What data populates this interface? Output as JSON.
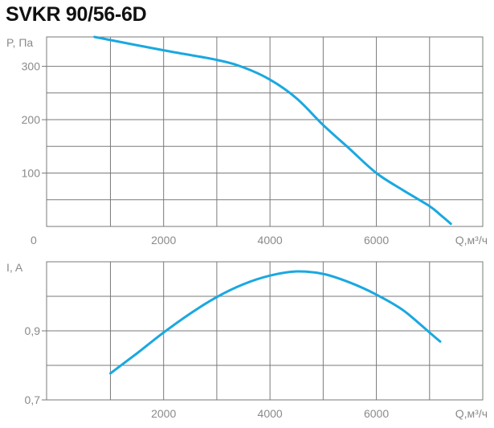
{
  "title": "SVKR 90/56-6D",
  "colors": {
    "curve": "#1aa8e0",
    "grid": "#7a7a7a",
    "text": "#8a8a8a",
    "title": "#111111"
  },
  "chart_data": [
    {
      "type": "line",
      "ylabel": "P, Па",
      "xlabel": "Q,м³/ч",
      "xlim": [
        -200,
        8000
      ],
      "ylim": [
        0,
        355
      ],
      "x_ticks": [
        2000,
        4000,
        6000
      ],
      "y_ticks": [
        100,
        200,
        300
      ],
      "origin_label": "0",
      "grid": true,
      "series": [
        {
          "x": [
            700,
            2000,
            3000,
            3500,
            4000,
            4500,
            5000,
            5500,
            6000,
            6500,
            7000,
            7200,
            7400
          ],
          "y": [
            355,
            330,
            312,
            298,
            275,
            240,
            190,
            145,
            100,
            68,
            38,
            22,
            5
          ]
        }
      ]
    },
    {
      "type": "line",
      "ylabel": "I, A",
      "xlabel": "Q,м³/ч",
      "xlim": [
        -200,
        8000
      ],
      "ylim": [
        0.7,
        1.1
      ],
      "x_ticks": [
        2000,
        4000,
        6000
      ],
      "y_ticks": [
        0.7,
        0.9
      ],
      "y_tick_labels": [
        "0,7",
        "0,9"
      ],
      "grid": true,
      "series": [
        {
          "x": [
            1000,
            1500,
            2000,
            2500,
            3000,
            3500,
            4000,
            4500,
            5000,
            5500,
            6000,
            6500,
            7000,
            7200
          ],
          "y": [
            0.777,
            0.835,
            0.895,
            0.95,
            0.998,
            1.035,
            1.06,
            1.072,
            1.065,
            1.04,
            1.005,
            0.96,
            0.895,
            0.869
          ]
        }
      ]
    }
  ]
}
